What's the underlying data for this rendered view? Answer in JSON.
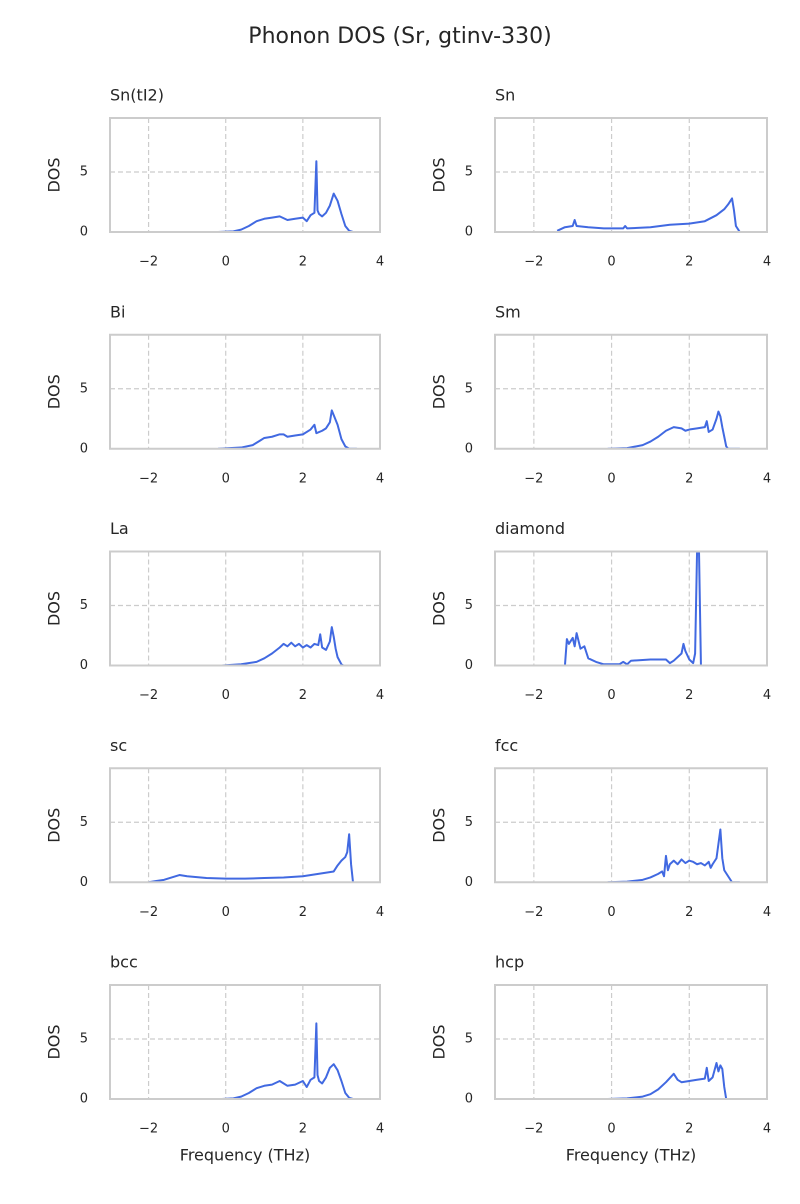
{
  "title": "Phonon DOS (Sr, gtinv-330)",
  "chart_data": [
    {
      "type": "line",
      "title": "Sn(tI2)",
      "ylabel": "DOS",
      "color": "#4169e1",
      "grid": true,
      "xlim": [
        -3,
        4
      ],
      "ylim": [
        0,
        9.5
      ],
      "xticks": [
        {
          "value": -2,
          "label": "−2"
        },
        0,
        2,
        4
      ],
      "yticks": [
        0,
        5
      ],
      "x": [
        -0.2,
        0.2,
        0.4,
        0.6,
        0.8,
        1.0,
        1.2,
        1.4,
        1.6,
        1.8,
        2.0,
        2.1,
        2.2,
        2.3,
        2.35,
        2.38,
        2.42,
        2.5,
        2.6,
        2.7,
        2.8,
        2.9,
        3.0,
        3.1,
        3.2,
        3.3
      ],
      "values": [
        0,
        0.05,
        0.2,
        0.5,
        0.9,
        1.1,
        1.2,
        1.3,
        1.0,
        1.1,
        1.2,
        0.9,
        1.4,
        1.6,
        5.9,
        1.8,
        1.5,
        1.3,
        1.6,
        2.2,
        3.2,
        2.6,
        1.5,
        0.5,
        0.1,
        0
      ]
    },
    {
      "type": "line",
      "title": "Sn",
      "ylabel": "DOS",
      "color": "#4169e1",
      "grid": true,
      "xlim": [
        -3,
        4
      ],
      "ylim": [
        0,
        9.5
      ],
      "xticks": [
        {
          "value": -2,
          "label": "−2"
        },
        0,
        2,
        4
      ],
      "yticks": [
        0,
        5
      ],
      "x": [
        -1.4,
        -1.2,
        -1.0,
        -0.95,
        -0.9,
        -0.6,
        -0.2,
        0.3,
        0.35,
        0.4,
        1.0,
        1.5,
        2.0,
        2.4,
        2.7,
        2.9,
        3.0,
        3.1,
        3.15,
        3.2,
        3.3
      ],
      "values": [
        0.1,
        0.4,
        0.5,
        1.0,
        0.5,
        0.4,
        0.3,
        0.3,
        0.5,
        0.3,
        0.4,
        0.6,
        0.7,
        0.9,
        1.4,
        1.9,
        2.3,
        2.8,
        1.8,
        0.5,
        0
      ]
    },
    {
      "type": "line",
      "title": "Bi",
      "ylabel": "DOS",
      "color": "#4169e1",
      "grid": true,
      "xlim": [
        -3,
        4
      ],
      "ylim": [
        0,
        9.5
      ],
      "xticks": [
        {
          "value": -2,
          "label": "−2"
        },
        0,
        2,
        4
      ],
      "yticks": [
        0,
        5
      ],
      "x": [
        -0.2,
        0.4,
        0.7,
        0.9,
        1.0,
        1.2,
        1.4,
        1.5,
        1.6,
        1.8,
        2.0,
        2.2,
        2.3,
        2.35,
        2.5,
        2.6,
        2.7,
        2.75,
        2.8,
        2.9,
        3.0,
        3.1,
        3.2,
        3.4
      ],
      "values": [
        0,
        0.1,
        0.3,
        0.7,
        0.9,
        1.0,
        1.2,
        1.2,
        1.0,
        1.1,
        1.2,
        1.6,
        2.0,
        1.3,
        1.5,
        1.7,
        2.2,
        3.2,
        2.8,
        2.0,
        0.8,
        0.2,
        0,
        0
      ]
    },
    {
      "type": "line",
      "title": "Sm",
      "ylabel": "DOS",
      "color": "#4169e1",
      "grid": true,
      "xlim": [
        -3,
        4
      ],
      "ylim": [
        0,
        9.5
      ],
      "xticks": [
        {
          "value": -2,
          "label": "−2"
        },
        0,
        2,
        4
      ],
      "yticks": [
        0,
        5
      ],
      "x": [
        -0.1,
        0.4,
        0.8,
        1.0,
        1.2,
        1.4,
        1.6,
        1.8,
        1.9,
        2.0,
        2.2,
        2.4,
        2.45,
        2.5,
        2.6,
        2.7,
        2.75,
        2.8,
        2.85,
        2.9,
        2.95,
        3.0,
        3.3
      ],
      "values": [
        0,
        0.05,
        0.3,
        0.6,
        1.0,
        1.5,
        1.8,
        1.7,
        1.5,
        1.6,
        1.7,
        1.8,
        2.3,
        1.4,
        1.6,
        2.5,
        3.1,
        2.7,
        1.8,
        1.0,
        0.2,
        0,
        0
      ]
    },
    {
      "type": "line",
      "title": "La",
      "ylabel": "DOS",
      "color": "#4169e1",
      "grid": true,
      "xlim": [
        -3,
        4
      ],
      "ylim": [
        0,
        9.5
      ],
      "xticks": [
        {
          "value": -2,
          "label": "−2"
        },
        0,
        2,
        4
      ],
      "yticks": [
        0,
        5
      ],
      "x": [
        -0.1,
        0.4,
        0.8,
        1.0,
        1.2,
        1.4,
        1.5,
        1.6,
        1.7,
        1.8,
        1.9,
        2.0,
        2.1,
        2.2,
        2.3,
        2.4,
        2.45,
        2.5,
        2.6,
        2.7,
        2.75,
        2.8,
        2.85,
        2.9,
        3.0,
        3.05,
        3.3
      ],
      "values": [
        0,
        0.1,
        0.3,
        0.6,
        1.0,
        1.5,
        1.8,
        1.6,
        1.9,
        1.6,
        1.8,
        1.5,
        1.7,
        1.5,
        1.8,
        1.7,
        2.6,
        1.5,
        1.3,
        2.0,
        3.2,
        2.4,
        1.4,
        0.7,
        0.1,
        0,
        0
      ]
    },
    {
      "type": "line",
      "title": "diamond",
      "ylabel": "DOS",
      "color": "#4169e1",
      "grid": true,
      "xlim": [
        -3,
        4
      ],
      "ylim": [
        0,
        9.5
      ],
      "xticks": [
        {
          "value": -2,
          "label": "−2"
        },
        0,
        2,
        4
      ],
      "yticks": [
        0,
        5
      ],
      "x": [
        -1.2,
        -1.15,
        -1.1,
        -1.0,
        -0.95,
        -0.9,
        -0.8,
        -0.7,
        -0.6,
        -0.4,
        -0.2,
        0.2,
        0.3,
        0.4,
        0.5,
        1.0,
        1.4,
        1.5,
        1.6,
        1.8,
        1.85,
        1.9,
        2.0,
        2.1,
        2.15,
        2.2,
        2.25,
        2.3,
        2.5
      ],
      "values": [
        0,
        2.2,
        1.8,
        2.3,
        1.6,
        2.7,
        1.4,
        1.6,
        0.6,
        0.3,
        0.1,
        0.1,
        0.3,
        0.1,
        0.4,
        0.5,
        0.5,
        0.2,
        0.4,
        1.0,
        1.8,
        1.2,
        0.5,
        0.2,
        1.0,
        9.5,
        9.5,
        0,
        0
      ]
    },
    {
      "type": "line",
      "title": "sc",
      "ylabel": "DOS",
      "color": "#4169e1",
      "grid": true,
      "xlim": [
        -3,
        4
      ],
      "ylim": [
        0,
        9.5
      ],
      "xticks": [
        {
          "value": -2,
          "label": "−2"
        },
        0,
        2,
        4
      ],
      "yticks": [
        0,
        5
      ],
      "x": [
        -2.0,
        -1.8,
        -1.6,
        -1.4,
        -1.2,
        -1.0,
        -0.5,
        0,
        0.5,
        1.0,
        1.5,
        2.0,
        2.4,
        2.8,
        2.9,
        3.0,
        3.1,
        3.15,
        3.2,
        3.25,
        3.3
      ],
      "values": [
        0,
        0.1,
        0.2,
        0.4,
        0.6,
        0.5,
        0.35,
        0.3,
        0.3,
        0.35,
        0.4,
        0.5,
        0.7,
        0.9,
        1.4,
        1.8,
        2.1,
        2.5,
        4.0,
        1.5,
        0
      ]
    },
    {
      "type": "line",
      "title": "fcc",
      "ylabel": "DOS",
      "color": "#4169e1",
      "grid": true,
      "xlim": [
        -3,
        4
      ],
      "ylim": [
        0,
        9.5
      ],
      "xticks": [
        {
          "value": -2,
          "label": "−2"
        },
        0,
        2,
        4
      ],
      "yticks": [
        0,
        5
      ],
      "x": [
        -0.1,
        0.4,
        0.8,
        1.0,
        1.2,
        1.3,
        1.35,
        1.4,
        1.45,
        1.5,
        1.6,
        1.7,
        1.8,
        1.9,
        2.0,
        2.1,
        2.2,
        2.3,
        2.4,
        2.5,
        2.55,
        2.6,
        2.7,
        2.8,
        2.85,
        2.9,
        3.0,
        3.1,
        3.3
      ],
      "values": [
        0,
        0.05,
        0.2,
        0.4,
        0.7,
        0.9,
        0.5,
        2.2,
        1.0,
        1.5,
        1.8,
        1.5,
        1.9,
        1.6,
        1.8,
        1.7,
        1.5,
        1.6,
        1.4,
        1.7,
        1.2,
        1.5,
        2.0,
        4.4,
        2.0,
        1.0,
        0.5,
        0,
        0
      ]
    },
    {
      "type": "line",
      "title": "bcc",
      "ylabel": "DOS",
      "xlabel": "Frequency (THz)",
      "color": "#4169e1",
      "grid": true,
      "xlim": [
        -3,
        4
      ],
      "ylim": [
        0,
        9.5
      ],
      "xticks": [
        {
          "value": -2,
          "label": "−2"
        },
        0,
        2,
        4
      ],
      "yticks": [
        0,
        5
      ],
      "x": [
        -0.1,
        0.2,
        0.4,
        0.6,
        0.8,
        1.0,
        1.2,
        1.4,
        1.6,
        1.8,
        2.0,
        2.1,
        2.2,
        2.3,
        2.35,
        2.38,
        2.42,
        2.5,
        2.6,
        2.7,
        2.8,
        2.9,
        3.0,
        3.1,
        3.2,
        3.3
      ],
      "values": [
        0,
        0.05,
        0.2,
        0.5,
        0.9,
        1.1,
        1.2,
        1.5,
        1.1,
        1.2,
        1.5,
        1.0,
        1.6,
        1.8,
        6.3,
        2.0,
        1.5,
        1.3,
        1.8,
        2.6,
        2.9,
        2.4,
        1.5,
        0.5,
        0.1,
        0
      ]
    },
    {
      "type": "line",
      "title": "hcp",
      "ylabel": "DOS",
      "xlabel": "Frequency (THz)",
      "color": "#4169e1",
      "grid": true,
      "xlim": [
        -3,
        4
      ],
      "ylim": [
        0,
        9.5
      ],
      "xticks": [
        {
          "value": -2,
          "label": "−2"
        },
        0,
        2,
        4
      ],
      "yticks": [
        0,
        5
      ],
      "x": [
        -0.1,
        0.4,
        0.8,
        1.0,
        1.2,
        1.4,
        1.6,
        1.7,
        1.8,
        2.0,
        2.2,
        2.4,
        2.45,
        2.5,
        2.6,
        2.7,
        2.75,
        2.8,
        2.85,
        2.9,
        2.95,
        3.2
      ],
      "values": [
        0,
        0.05,
        0.2,
        0.4,
        0.8,
        1.4,
        2.1,
        1.6,
        1.4,
        1.5,
        1.6,
        1.7,
        2.6,
        1.5,
        1.8,
        3.0,
        2.3,
        2.8,
        2.5,
        1.0,
        0,
        0
      ]
    }
  ]
}
